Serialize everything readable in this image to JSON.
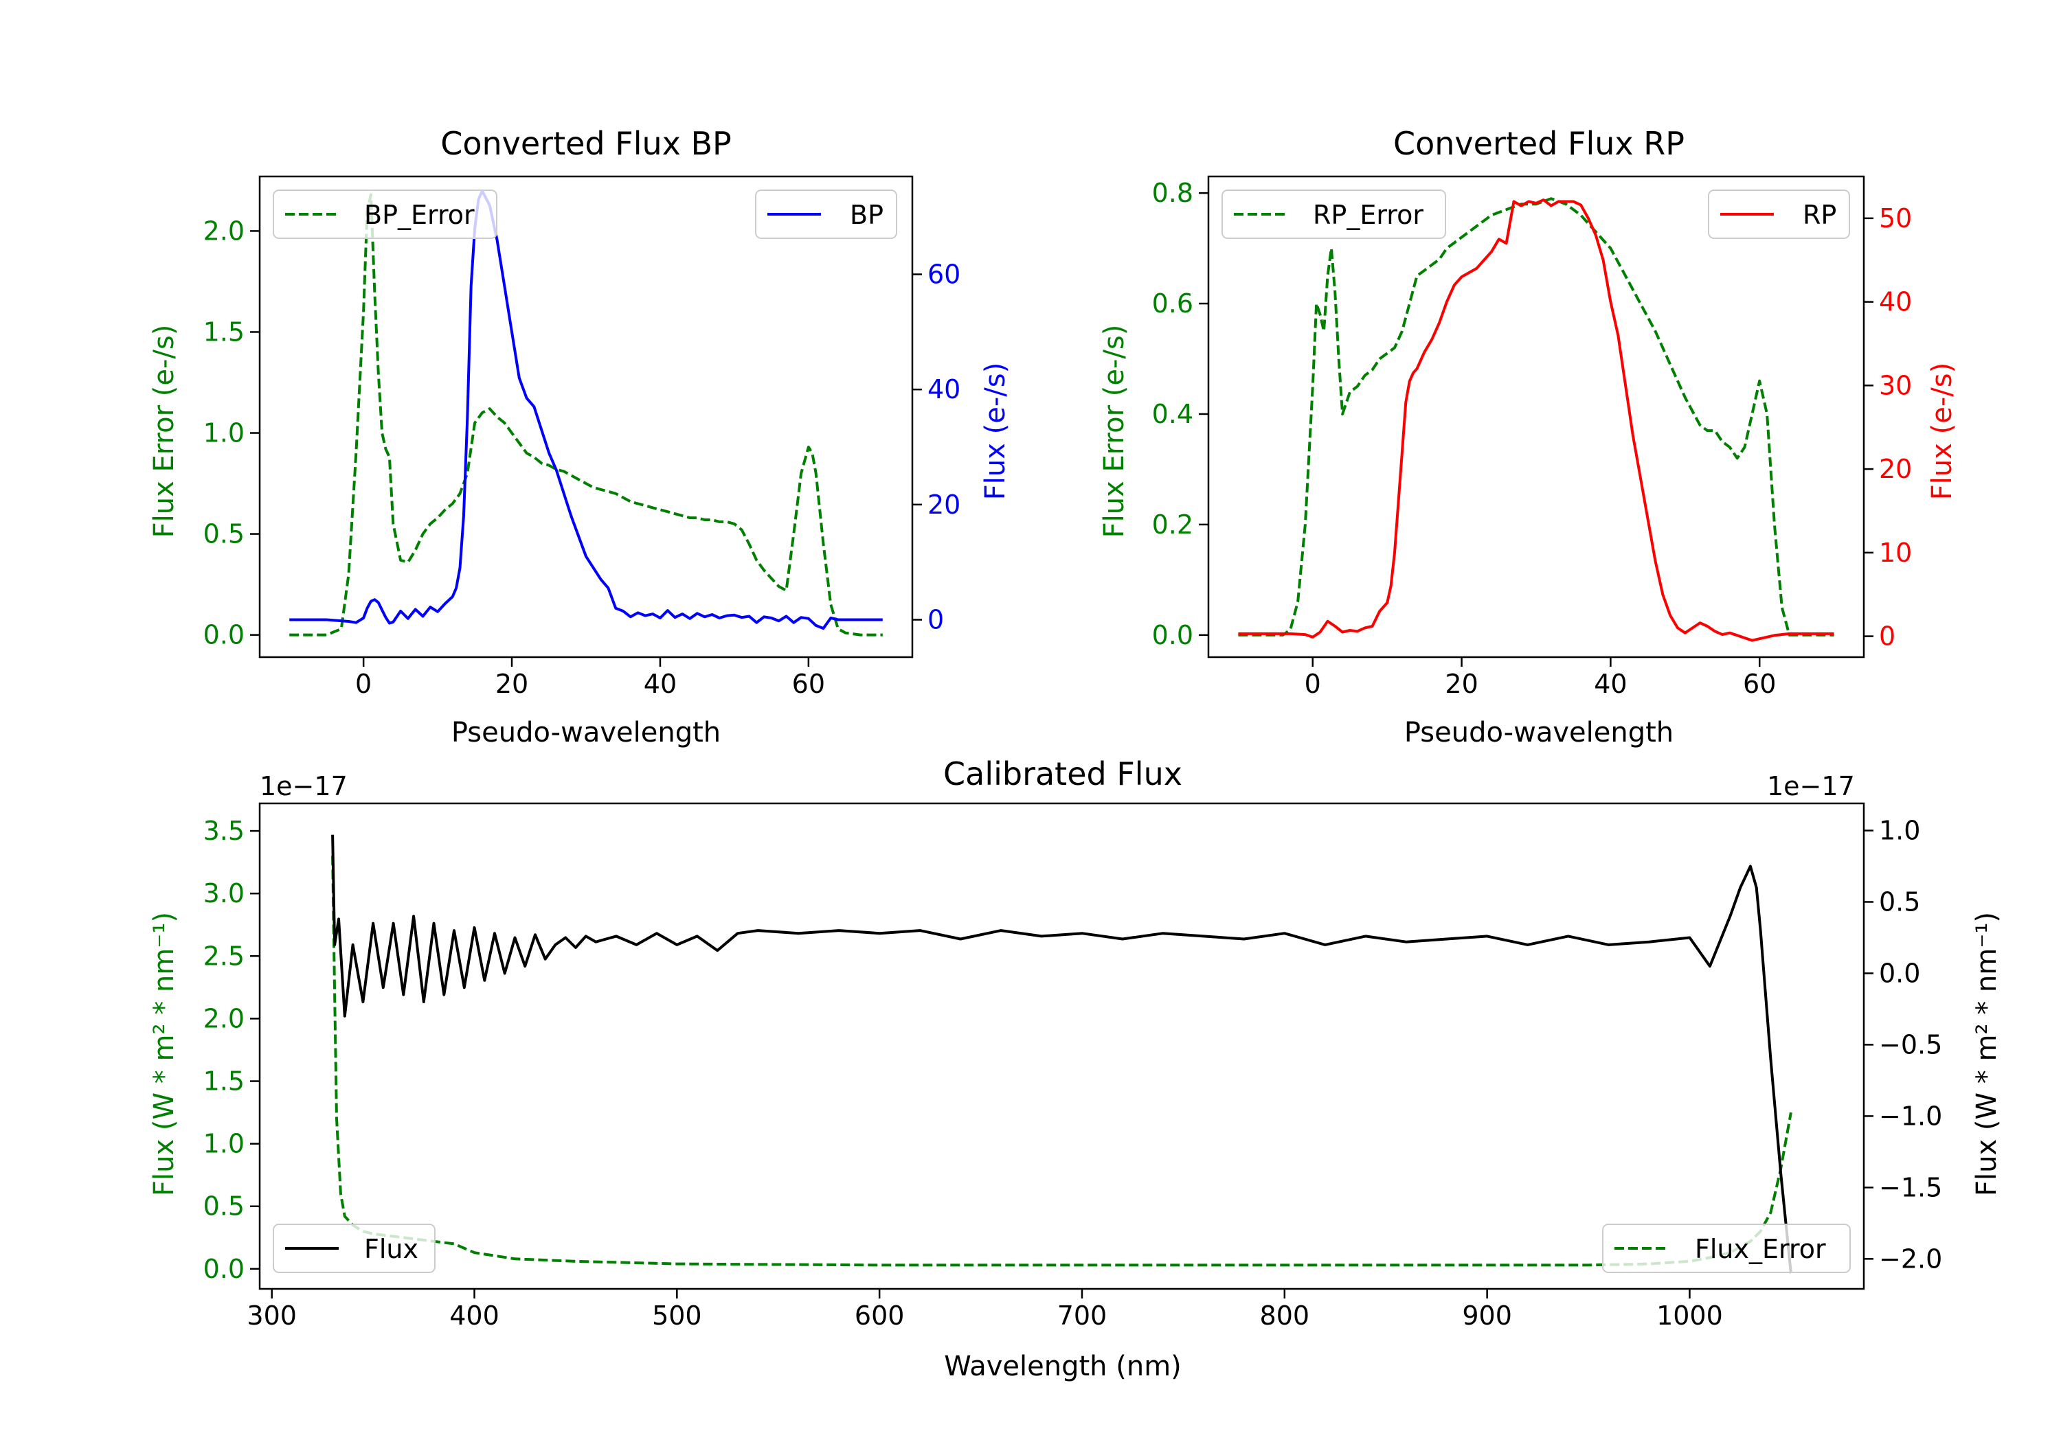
{
  "chart_data": [
    {
      "id": "bp",
      "type": "line",
      "title": "Converted Flux BP",
      "xlabel": "Pseudo-wavelength",
      "xlim": [
        -14.0,
        74.0
      ],
      "xticks": [
        "0",
        "20",
        "40",
        "60"
      ],
      "xtick_values": [
        0,
        20,
        40,
        60
      ],
      "left_axis": {
        "label": "Flux Error (e-/s)",
        "color": "#008000",
        "ylim": [
          -0.11,
          2.27
        ],
        "ticks": [
          "0.0",
          "0.5",
          "1.0",
          "1.5",
          "2.0"
        ],
        "tick_values": [
          0,
          0.5,
          1.0,
          1.5,
          2.0
        ]
      },
      "right_axis": {
        "label": "Flux (e-/s)",
        "color": "#0000ff",
        "ylim": [
          -6.5,
          77.0
        ],
        "ticks": [
          "0",
          "20",
          "40",
          "60"
        ],
        "tick_values": [
          0,
          20,
          40,
          60
        ]
      },
      "legend_left": {
        "label": "BP_Error",
        "style": "dashed",
        "color": "#008000",
        "placement": "upper-left"
      },
      "legend_right": {
        "label": "BP",
        "style": "solid",
        "color": "#0000ff",
        "placement": "upper-right"
      },
      "series": [
        {
          "name": "BP_Error",
          "axis": "left",
          "color": "#008000",
          "dash": true,
          "x": [
            -10,
            -5,
            -3,
            -2,
            -1,
            0,
            0.5,
            1,
            1.5,
            2,
            2.5,
            3,
            3.5,
            4,
            5,
            6,
            7,
            8,
            9,
            10,
            11,
            12,
            13,
            14,
            15,
            16,
            17,
            18,
            19,
            20,
            21,
            22,
            23,
            24,
            25,
            26,
            27,
            28,
            29,
            30,
            31,
            32,
            33,
            34,
            35,
            36,
            37,
            38,
            39,
            40,
            41,
            42,
            43,
            44,
            45,
            46,
            47,
            48,
            49,
            50,
            51,
            52,
            53,
            54,
            55,
            56,
            57,
            58,
            59,
            60,
            60.5,
            61,
            62,
            63,
            64,
            65,
            67,
            70
          ],
          "y": [
            0.0,
            0.0,
            0.03,
            0.3,
            0.9,
            1.6,
            2.1,
            2.18,
            1.7,
            1.3,
            1.0,
            0.92,
            0.88,
            0.55,
            0.37,
            0.36,
            0.42,
            0.5,
            0.55,
            0.58,
            0.62,
            0.65,
            0.7,
            0.8,
            1.05,
            1.1,
            1.12,
            1.08,
            1.05,
            1.0,
            0.95,
            0.9,
            0.88,
            0.85,
            0.84,
            0.82,
            0.81,
            0.79,
            0.77,
            0.75,
            0.73,
            0.72,
            0.71,
            0.7,
            0.68,
            0.66,
            0.65,
            0.64,
            0.63,
            0.62,
            0.61,
            0.6,
            0.59,
            0.58,
            0.58,
            0.57,
            0.57,
            0.56,
            0.56,
            0.55,
            0.52,
            0.45,
            0.37,
            0.32,
            0.28,
            0.24,
            0.22,
            0.5,
            0.8,
            0.93,
            0.9,
            0.8,
            0.45,
            0.15,
            0.03,
            0.01,
            0.0,
            0.0
          ]
        },
        {
          "name": "BP",
          "axis": "right",
          "color": "#0000ff",
          "dash": false,
          "x": [
            -10,
            -5,
            -2,
            -1,
            0,
            0.5,
            1,
            1.5,
            2,
            2.5,
            3,
            3.5,
            4,
            5,
            6,
            7,
            8,
            9,
            10,
            11,
            12,
            12.5,
            13,
            13.5,
            14,
            14.5,
            15,
            15.5,
            16,
            17,
            18,
            19,
            20,
            21,
            22,
            23,
            24,
            25,
            26,
            27,
            28,
            29,
            30,
            31,
            32,
            33,
            34,
            35,
            36,
            37,
            38,
            39,
            40,
            41,
            42,
            43,
            44,
            45,
            46,
            47,
            48,
            49,
            50,
            51,
            52,
            53,
            54,
            55,
            56,
            57,
            58,
            59,
            60,
            61,
            62,
            63,
            64,
            66,
            70
          ],
          "y": [
            0,
            0,
            -0.3,
            -0.5,
            0.3,
            2.0,
            3.2,
            3.5,
            3.0,
            1.7,
            0.4,
            -0.6,
            -0.4,
            1.5,
            0.2,
            1.8,
            0.6,
            2.2,
            1.4,
            2.8,
            4.0,
            5.5,
            9.0,
            18.0,
            35.0,
            58.0,
            68.0,
            73.0,
            74.5,
            72.0,
            66.0,
            58.0,
            50.0,
            42.0,
            38.5,
            37.0,
            33.0,
            29.0,
            26.0,
            22.0,
            18.0,
            14.5,
            11.0,
            9.0,
            7.0,
            5.5,
            2.0,
            1.5,
            0.5,
            1.2,
            0.7,
            1.0,
            0.3,
            1.6,
            0.4,
            1.0,
            0.2,
            1.1,
            0.5,
            0.9,
            0.3,
            0.7,
            0.8,
            0.4,
            0.6,
            -0.5,
            0.5,
            0.3,
            -0.2,
            0.6,
            -0.5,
            0.4,
            0.2,
            -1.0,
            -1.5,
            0.3,
            0.0,
            0.0,
            0.0
          ]
        }
      ]
    },
    {
      "id": "rp",
      "type": "line",
      "title": "Converted Flux RP",
      "xlabel": "Pseudo-wavelength",
      "xlim": [
        -14.0,
        74.0
      ],
      "xticks": [
        "0",
        "20",
        "40",
        "60"
      ],
      "xtick_values": [
        0,
        20,
        40,
        60
      ],
      "left_axis": {
        "label": "Flux Error (e-/s)",
        "color": "#008000",
        "ylim": [
          -0.04,
          0.83
        ],
        "ticks": [
          "0.0",
          "0.2",
          "0.4",
          "0.6",
          "0.8"
        ],
        "tick_values": [
          0,
          0.2,
          0.4,
          0.6,
          0.8
        ]
      },
      "right_axis": {
        "label": "Flux (e-/s)",
        "color": "#ff0000",
        "ylim": [
          -2.5,
          55.0
        ],
        "ticks": [
          "0",
          "10",
          "20",
          "30",
          "40",
          "50"
        ],
        "tick_values": [
          0,
          10,
          20,
          30,
          40,
          50
        ]
      },
      "legend_left": {
        "label": "RP_Error",
        "style": "dashed",
        "color": "#008000",
        "placement": "upper-left"
      },
      "legend_right": {
        "label": "RP",
        "style": "solid",
        "color": "#ff0000",
        "placement": "upper-right"
      },
      "series": [
        {
          "name": "RP_Error",
          "axis": "left",
          "color": "#008000",
          "dash": true,
          "x": [
            -10,
            -4,
            -3,
            -2,
            -1,
            0,
            0.5,
            1,
            1.5,
            2,
            2.5,
            3,
            3.5,
            4,
            5,
            6,
            7,
            8,
            9,
            10,
            11,
            12,
            13,
            14,
            15,
            16,
            17,
            18,
            19,
            20,
            22,
            24,
            26,
            28,
            30,
            32,
            34,
            36,
            38,
            40,
            42,
            44,
            46,
            48,
            50,
            52,
            53,
            54,
            55,
            56,
            57,
            58,
            59,
            60,
            61,
            62,
            63,
            64,
            66,
            70
          ],
          "y": [
            0.0,
            0.0,
            0.01,
            0.06,
            0.2,
            0.45,
            0.6,
            0.58,
            0.55,
            0.65,
            0.7,
            0.62,
            0.5,
            0.4,
            0.44,
            0.45,
            0.47,
            0.48,
            0.5,
            0.51,
            0.52,
            0.55,
            0.6,
            0.65,
            0.66,
            0.67,
            0.68,
            0.7,
            0.71,
            0.72,
            0.74,
            0.76,
            0.77,
            0.78,
            0.78,
            0.79,
            0.78,
            0.76,
            0.73,
            0.7,
            0.65,
            0.6,
            0.55,
            0.49,
            0.43,
            0.38,
            0.37,
            0.37,
            0.35,
            0.34,
            0.32,
            0.34,
            0.4,
            0.46,
            0.4,
            0.2,
            0.05,
            0.0,
            0.0,
            0.0
          ]
        },
        {
          "name": "RP",
          "axis": "right",
          "color": "#ff0000",
          "dash": false,
          "x": [
            -10,
            -3,
            -1,
            0,
            1,
            2,
            3,
            4,
            5,
            6,
            7,
            8,
            9,
            10,
            10.5,
            11,
            12,
            12.5,
            13,
            13.5,
            14,
            15,
            16,
            17,
            18,
            19,
            20,
            22,
            24,
            25,
            26,
            27,
            28,
            29,
            30,
            31,
            32,
            33,
            34,
            35,
            36,
            37,
            38,
            39,
            40,
            41,
            42,
            43,
            44,
            45,
            46,
            47,
            48,
            49,
            50,
            51,
            52,
            53,
            54,
            55,
            56,
            57,
            58,
            59,
            60,
            62,
            64,
            70
          ],
          "y": [
            0.3,
            0.3,
            0.2,
            -0.1,
            0.5,
            1.8,
            1.2,
            0.5,
            0.7,
            0.6,
            1.0,
            1.2,
            3.0,
            4.0,
            6.0,
            10.0,
            22.0,
            28.0,
            30.5,
            31.5,
            32.0,
            34.0,
            35.5,
            37.5,
            40.0,
            42.0,
            43.0,
            44.0,
            46.0,
            47.5,
            47.0,
            52.0,
            51.5,
            52.0,
            51.8,
            52.2,
            51.5,
            52.0,
            52.0,
            52.0,
            51.6,
            50.0,
            48.0,
            45.0,
            40.0,
            36.0,
            30.0,
            24.0,
            19.0,
            14.0,
            9.0,
            5.0,
            2.5,
            1.0,
            0.4,
            1.0,
            1.6,
            1.2,
            0.6,
            0.2,
            0.4,
            0.1,
            -0.2,
            -0.5,
            -0.3,
            0.1,
            0.3,
            0.3
          ]
        }
      ]
    },
    {
      "id": "cal",
      "type": "line",
      "title": "Calibrated Flux",
      "xlabel": "Wavelength (nm)",
      "xlim": [
        294.0,
        1086.0
      ],
      "xticks": [
        "300",
        "400",
        "500",
        "600",
        "700",
        "800",
        "900",
        "1000"
      ],
      "xtick_values": [
        300,
        400,
        500,
        600,
        700,
        800,
        900,
        1000
      ],
      "left_axis": {
        "label": "Flux (W * m² * nm⁻¹)",
        "color": "#008000",
        "ylim": [
          -0.16,
          3.72
        ],
        "offset": "1e−17",
        "ticks": [
          "0.0",
          "0.5",
          "1.0",
          "1.5",
          "2.0",
          "2.5",
          "3.0",
          "3.5"
        ],
        "tick_values": [
          0,
          0.5,
          1.0,
          1.5,
          2.0,
          2.5,
          3.0,
          3.5
        ]
      },
      "right_axis": {
        "label": "Flux (W * m² * nm⁻¹)",
        "color": "#000000",
        "ylim": [
          -2.21,
          1.19
        ],
        "offset": "1e−17",
        "ticks": [
          "1.0",
          "0.5",
          "0.0",
          "−0.5",
          "−1.0",
          "−1.5",
          "−2.0"
        ],
        "tick_values": [
          1.0,
          0.5,
          0.0,
          -0.5,
          -1.0,
          -1.5,
          -2.0
        ]
      },
      "legend_left": {
        "label": "Flux",
        "style": "solid",
        "color": "#000000",
        "placement": "lower-left"
      },
      "legend_right": {
        "label": "Flux_Error",
        "style": "dashed",
        "color": "#008000",
        "placement": "lower-right"
      },
      "series": [
        {
          "name": "Flux_Error",
          "axis": "left",
          "color": "#008000",
          "dash": true,
          "x": [
            330,
            331,
            332,
            334,
            336,
            340,
            345,
            350,
            360,
            370,
            380,
            390,
            400,
            420,
            450,
            500,
            600,
            700,
            800,
            900,
            950,
            980,
            1000,
            1010,
            1020,
            1030,
            1035,
            1040,
            1045,
            1050
          ],
          "y": [
            3.3,
            2.2,
            1.2,
            0.6,
            0.42,
            0.35,
            0.3,
            0.28,
            0.26,
            0.24,
            0.22,
            0.2,
            0.13,
            0.08,
            0.06,
            0.04,
            0.03,
            0.03,
            0.03,
            0.03,
            0.03,
            0.04,
            0.06,
            0.09,
            0.13,
            0.22,
            0.3,
            0.45,
            0.8,
            1.25
          ]
        },
        {
          "name": "Flux",
          "axis": "right",
          "color": "#000000",
          "dash": false,
          "x": [
            330,
            331,
            333,
            336,
            340,
            345,
            350,
            355,
            360,
            365,
            370,
            375,
            380,
            385,
            390,
            395,
            400,
            405,
            410,
            415,
            420,
            425,
            430,
            435,
            440,
            445,
            450,
            455,
            460,
            470,
            480,
            490,
            500,
            510,
            520,
            530,
            540,
            560,
            580,
            600,
            620,
            640,
            660,
            680,
            700,
            720,
            740,
            760,
            780,
            800,
            820,
            840,
            860,
            880,
            900,
            920,
            940,
            960,
            980,
            1000,
            1010,
            1020,
            1025,
            1030,
            1033,
            1035,
            1040,
            1045,
            1050
          ],
          "y": [
            0.97,
            0.2,
            0.38,
            -0.3,
            0.2,
            -0.2,
            0.35,
            -0.1,
            0.35,
            -0.15,
            0.4,
            -0.2,
            0.35,
            -0.15,
            0.3,
            -0.1,
            0.32,
            -0.05,
            0.28,
            0.0,
            0.25,
            0.05,
            0.27,
            0.1,
            0.2,
            0.25,
            0.18,
            0.26,
            0.22,
            0.26,
            0.2,
            0.28,
            0.2,
            0.26,
            0.16,
            0.28,
            0.3,
            0.28,
            0.3,
            0.28,
            0.3,
            0.24,
            0.3,
            0.26,
            0.28,
            0.24,
            0.28,
            0.26,
            0.24,
            0.28,
            0.2,
            0.26,
            0.22,
            0.24,
            0.26,
            0.2,
            0.26,
            0.2,
            0.22,
            0.25,
            0.05,
            0.4,
            0.6,
            0.75,
            0.6,
            0.3,
            -0.6,
            -1.4,
            -2.1
          ]
        }
      ]
    }
  ]
}
